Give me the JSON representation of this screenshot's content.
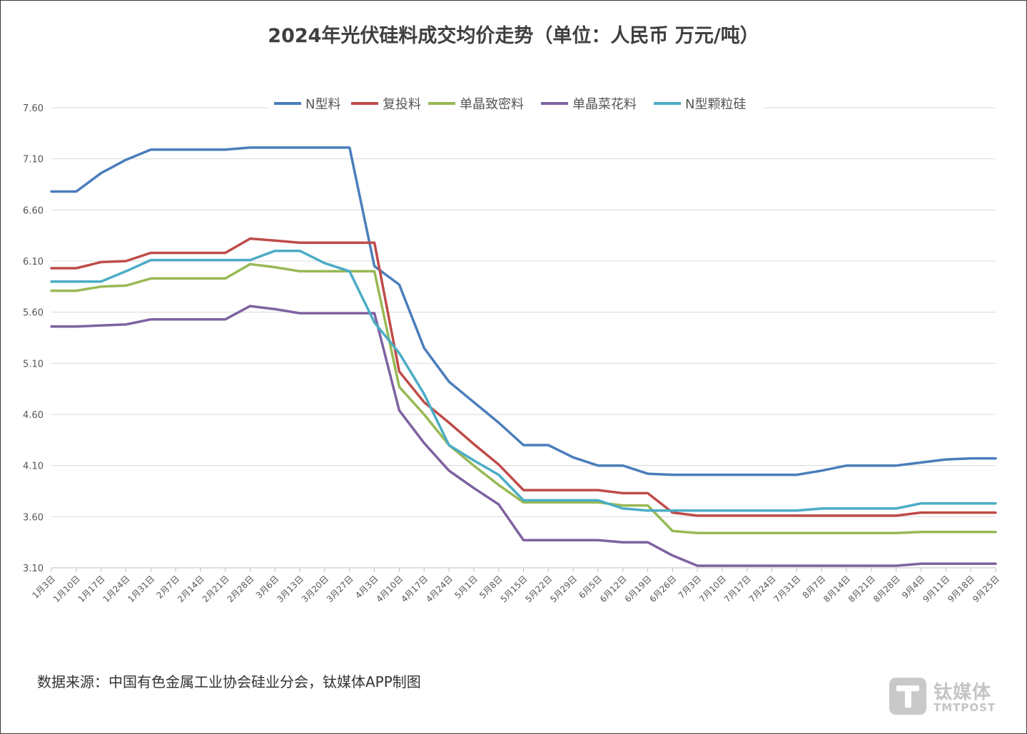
{
  "title": "2024年光伏硅料成交均价走势（单位：人民币 万元/吨）",
  "source": "数据来源：中国有色金属工业协会硅业分会，钛媒体APP制图",
  "watermark": {
    "cn": "钛媒体",
    "en": "TMTPOST",
    "logo_icon": "t-logo-icon"
  },
  "chart_data": {
    "type": "line",
    "title": "2024年光伏硅料成交均价走势（单位：人民币 万元/吨）",
    "xlabel": "",
    "ylabel": "",
    "ylim": [
      3.1,
      7.6
    ],
    "y_ticks": [
      "3.10",
      "3.60",
      "4.10",
      "4.60",
      "5.10",
      "5.60",
      "6.10",
      "6.60",
      "7.10",
      "7.60"
    ],
    "grid": true,
    "legend_position": "top",
    "categories": [
      "1月3日",
      "1月10日",
      "1月17日",
      "1月24日",
      "1月31日",
      "2月7日",
      "2月14日",
      "2月21日",
      "2月28日",
      "3月6日",
      "3月13日",
      "3月20日",
      "3月27日",
      "4月3日",
      "4月10日",
      "4月17日",
      "4月24日",
      "5月1日",
      "5月8日",
      "5月15日",
      "5月22日",
      "5月29日",
      "6月5日",
      "6月12日",
      "6月19日",
      "6月26日",
      "7月3日",
      "7月10日",
      "7月17日",
      "7月24日",
      "7月31日",
      "8月7日",
      "8月14日",
      "8月21日",
      "8月28日",
      "9月4日",
      "9月11日",
      "9月18日",
      "9月25日"
    ],
    "series": [
      {
        "name": "N型料",
        "color": "#4a7ebb",
        "values": [
          6.78,
          6.78,
          6.96,
          7.09,
          7.19,
          7.19,
          7.19,
          7.19,
          7.21,
          7.21,
          7.21,
          7.21,
          7.21,
          6.05,
          5.87,
          5.25,
          4.92,
          4.72,
          4.52,
          4.3,
          4.3,
          4.18,
          4.1,
          4.1,
          4.02,
          4.01,
          4.01,
          4.01,
          4.01,
          4.01,
          4.01,
          4.05,
          4.1,
          4.1,
          4.1,
          4.13,
          4.16,
          4.17,
          4.17
        ]
      },
      {
        "name": "复投料",
        "color": "#be4b48",
        "values": [
          6.03,
          6.03,
          6.09,
          6.1,
          6.18,
          6.18,
          6.18,
          6.18,
          6.32,
          6.3,
          6.28,
          6.28,
          6.28,
          6.28,
          5.02,
          4.72,
          4.52,
          4.31,
          4.11,
          3.86,
          3.86,
          3.86,
          3.86,
          3.83,
          3.83,
          3.64,
          3.61,
          3.61,
          3.61,
          3.61,
          3.61,
          3.61,
          3.61,
          3.61,
          3.61,
          3.64,
          3.64,
          3.64,
          3.64
        ]
      },
      {
        "name": "单晶致密料",
        "color": "#98b954",
        "values": [
          5.81,
          5.81,
          5.85,
          5.86,
          5.93,
          5.93,
          5.93,
          5.93,
          6.07,
          6.04,
          6.0,
          6.0,
          6.0,
          6.0,
          4.87,
          4.6,
          4.3,
          4.1,
          3.91,
          3.74,
          3.74,
          3.74,
          3.74,
          3.71,
          3.71,
          3.46,
          3.44,
          3.44,
          3.44,
          3.44,
          3.44,
          3.44,
          3.44,
          3.44,
          3.44,
          3.45,
          3.45,
          3.45,
          3.45
        ]
      },
      {
        "name": "单晶菜花料",
        "color": "#7e62a1",
        "values": [
          5.46,
          5.46,
          5.47,
          5.48,
          5.53,
          5.53,
          5.53,
          5.53,
          5.66,
          5.63,
          5.59,
          5.59,
          5.59,
          5.59,
          4.64,
          4.32,
          4.05,
          3.88,
          3.72,
          3.37,
          3.37,
          3.37,
          3.37,
          3.35,
          3.35,
          3.22,
          3.12,
          3.12,
          3.12,
          3.12,
          3.12,
          3.12,
          3.12,
          3.12,
          3.12,
          3.14,
          3.14,
          3.14,
          3.14
        ]
      },
      {
        "name": "N型颗粒硅",
        "color": "#4bacc6",
        "values": [
          5.9,
          5.9,
          5.9,
          6.0,
          6.11,
          6.11,
          6.11,
          6.11,
          6.11,
          6.2,
          6.2,
          6.08,
          6.0,
          5.5,
          5.2,
          4.8,
          4.3,
          4.15,
          4.01,
          3.76,
          3.76,
          3.76,
          3.76,
          3.68,
          3.66,
          3.66,
          3.66,
          3.66,
          3.66,
          3.66,
          3.66,
          3.68,
          3.68,
          3.68,
          3.68,
          3.73,
          3.73,
          3.73,
          3.73
        ]
      }
    ]
  }
}
